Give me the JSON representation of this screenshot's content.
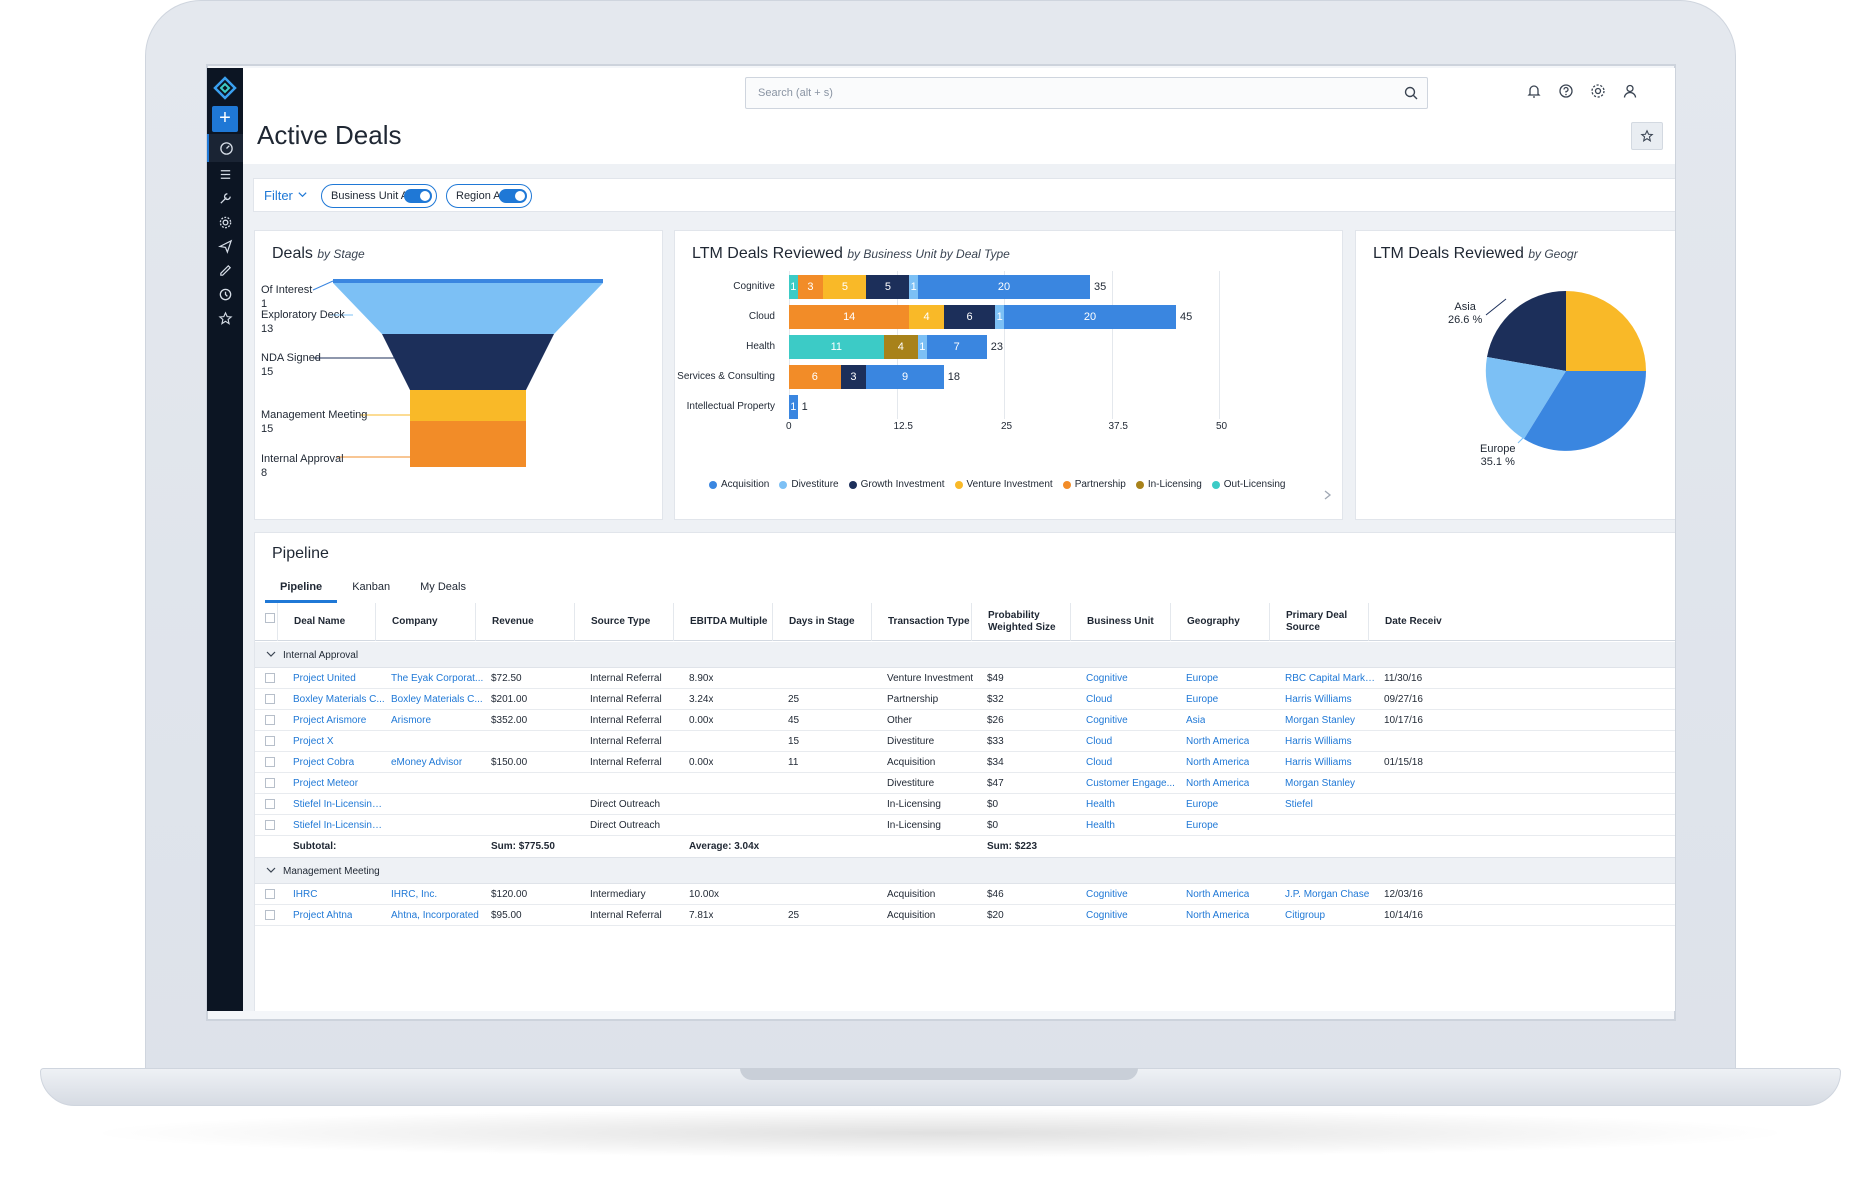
{
  "search": {
    "placeholder": "Search (alt + s)"
  },
  "page": {
    "title": "Active Deals"
  },
  "filters": {
    "label": "Filter",
    "chips": [
      "Business Unit Any",
      "Region Any"
    ]
  },
  "colors": {
    "acquisition": "#3a86e0",
    "divestiture": "#7cc0f5",
    "growth_investment": "#1c2f5a",
    "venture_investment": "#f9b928",
    "partnership": "#f28c28",
    "in_licensing": "#a8821a",
    "out_licensing": "#3ccbc6"
  },
  "funnel": {
    "title": "Deals",
    "title_italic": "by Stage",
    "stages": [
      {
        "name": "Of Interest",
        "value": "1"
      },
      {
        "name": "Exploratory Deck",
        "value": "13"
      },
      {
        "name": "NDA Signed",
        "value": "15"
      },
      {
        "name": "Management Meeting",
        "value": "15"
      },
      {
        "name": "Internal Approval",
        "value": "8"
      }
    ]
  },
  "chart_data": [
    {
      "type": "bar",
      "orientation": "horizontal",
      "stacked": true,
      "title": "LTM Deals Reviewed",
      "subtitle": "by Business Unit by Deal Type",
      "categories": [
        "Cognitive",
        "Cloud",
        "Health",
        "Services & Consulting",
        "Intellectual Property"
      ],
      "series": [
        {
          "name": "Out-Licensing",
          "values": [
            1,
            0,
            11,
            0,
            0
          ]
        },
        {
          "name": "Partnership",
          "values": [
            3,
            14,
            0,
            6,
            0
          ]
        },
        {
          "name": "Venture Investment",
          "values": [
            5,
            4,
            0,
            0,
            0
          ]
        },
        {
          "name": "In-Licensing",
          "values": [
            0,
            0,
            4,
            0,
            0
          ]
        },
        {
          "name": "Growth Investment",
          "values": [
            5,
            6,
            0,
            3,
            0
          ]
        },
        {
          "name": "Divestiture",
          "values": [
            1,
            1,
            1,
            0,
            0
          ]
        },
        {
          "name": "Acquisition",
          "values": [
            20,
            20,
            7,
            9,
            1
          ]
        }
      ],
      "totals": [
        35,
        45,
        23,
        18,
        1
      ],
      "xlim": [
        0,
        50
      ],
      "xticks": [
        "0",
        "12.5",
        "25",
        "37.5",
        "50"
      ],
      "legend": [
        "Acquisition",
        "Divestiture",
        "Growth Investment",
        "Venture Investment",
        "Partnership",
        "In-Licensing",
        "Out-Licensing"
      ],
      "legend_position": "bottom",
      "grid": true
    },
    {
      "type": "pie",
      "title": "LTM Deals Reviewed",
      "subtitle": "by Geogr",
      "slices": [
        {
          "label": "Asia",
          "value": "26.6 %"
        },
        {
          "label": "Europe",
          "value": "35.1 %"
        }
      ]
    }
  ],
  "pipeline": {
    "title": "Pipeline",
    "tabs": [
      "Pipeline",
      "Kanban",
      "My Deals"
    ],
    "columns": [
      "Deal Name",
      "Company",
      "Revenue",
      "Source Type",
      "EBITDA Multiple",
      "Days in Stage",
      "Transaction Type",
      "Probability Weighted Size",
      "Business Unit",
      "Geography",
      "Primary Deal Source",
      "Date Receiv"
    ],
    "groups": [
      {
        "name": "Internal Approval",
        "rows": [
          [
            "Project United",
            "The Eyak Corporat...",
            "$72.50",
            "Internal Referral",
            "8.90x",
            "",
            "Venture Investment",
            "$49",
            "Cognitive",
            "Europe",
            "RBC Capital Markets",
            "11/30/16"
          ],
          [
            "Boxley Materials C...",
            "Boxley Materials C...",
            "$201.00",
            "Internal Referral",
            "3.24x",
            "25",
            "Partnership",
            "$32",
            "Cloud",
            "Europe",
            "Harris Williams",
            "09/27/16"
          ],
          [
            "Project Arismore",
            "Arismore",
            "$352.00",
            "Internal Referral",
            "0.00x",
            "45",
            "Other",
            "$26",
            "Cognitive",
            "Asia",
            "Morgan Stanley",
            "10/17/16"
          ],
          [
            "Project X",
            "",
            "",
            "Internal Referral",
            "",
            "15",
            "Divestiture",
            "$33",
            "Cloud",
            "North America",
            "Harris Williams",
            ""
          ],
          [
            "Project Cobra",
            "eMoney Advisor",
            "$150.00",
            "Internal Referral",
            "0.00x",
            "11",
            "Acquisition",
            "$34",
            "Cloud",
            "North America",
            "Harris Williams",
            "01/15/18"
          ],
          [
            "Project Meteor",
            "",
            "",
            "",
            "",
            "",
            "Divestiture",
            "$47",
            "Customer Engage...",
            "North America",
            "Morgan Stanley",
            ""
          ],
          [
            "Stiefel In-Licensing...",
            "",
            "",
            "Direct Outreach",
            "",
            "",
            "In-Licensing",
            "$0",
            "Health",
            "Europe",
            "Stiefel",
            ""
          ],
          [
            "Stiefel In-Licensing...",
            "",
            "",
            "Direct Outreach",
            "",
            "",
            "In-Licensing",
            "$0",
            "Health",
            "Europe",
            "",
            ""
          ]
        ],
        "subtotal": {
          "label": "Subtotal:",
          "revenue": "Sum: $775.50",
          "ebitda": "Average: 3.04x",
          "weighted": "Sum: $223"
        }
      },
      {
        "name": "Management Meeting",
        "rows": [
          [
            "IHRC",
            "IHRC, Inc.",
            "$120.00",
            "Intermediary",
            "10.00x",
            "",
            "Acquisition",
            "$46",
            "Cognitive",
            "North America",
            "J.P. Morgan Chase",
            "12/03/16"
          ],
          [
            "Project Ahtna",
            "Ahtna, Incorporated",
            "$95.00",
            "Internal Referral",
            "7.81x",
            "25",
            "Acquisition",
            "$20",
            "Cognitive",
            "North America",
            "Citigroup",
            "10/14/16"
          ]
        ]
      }
    ]
  }
}
